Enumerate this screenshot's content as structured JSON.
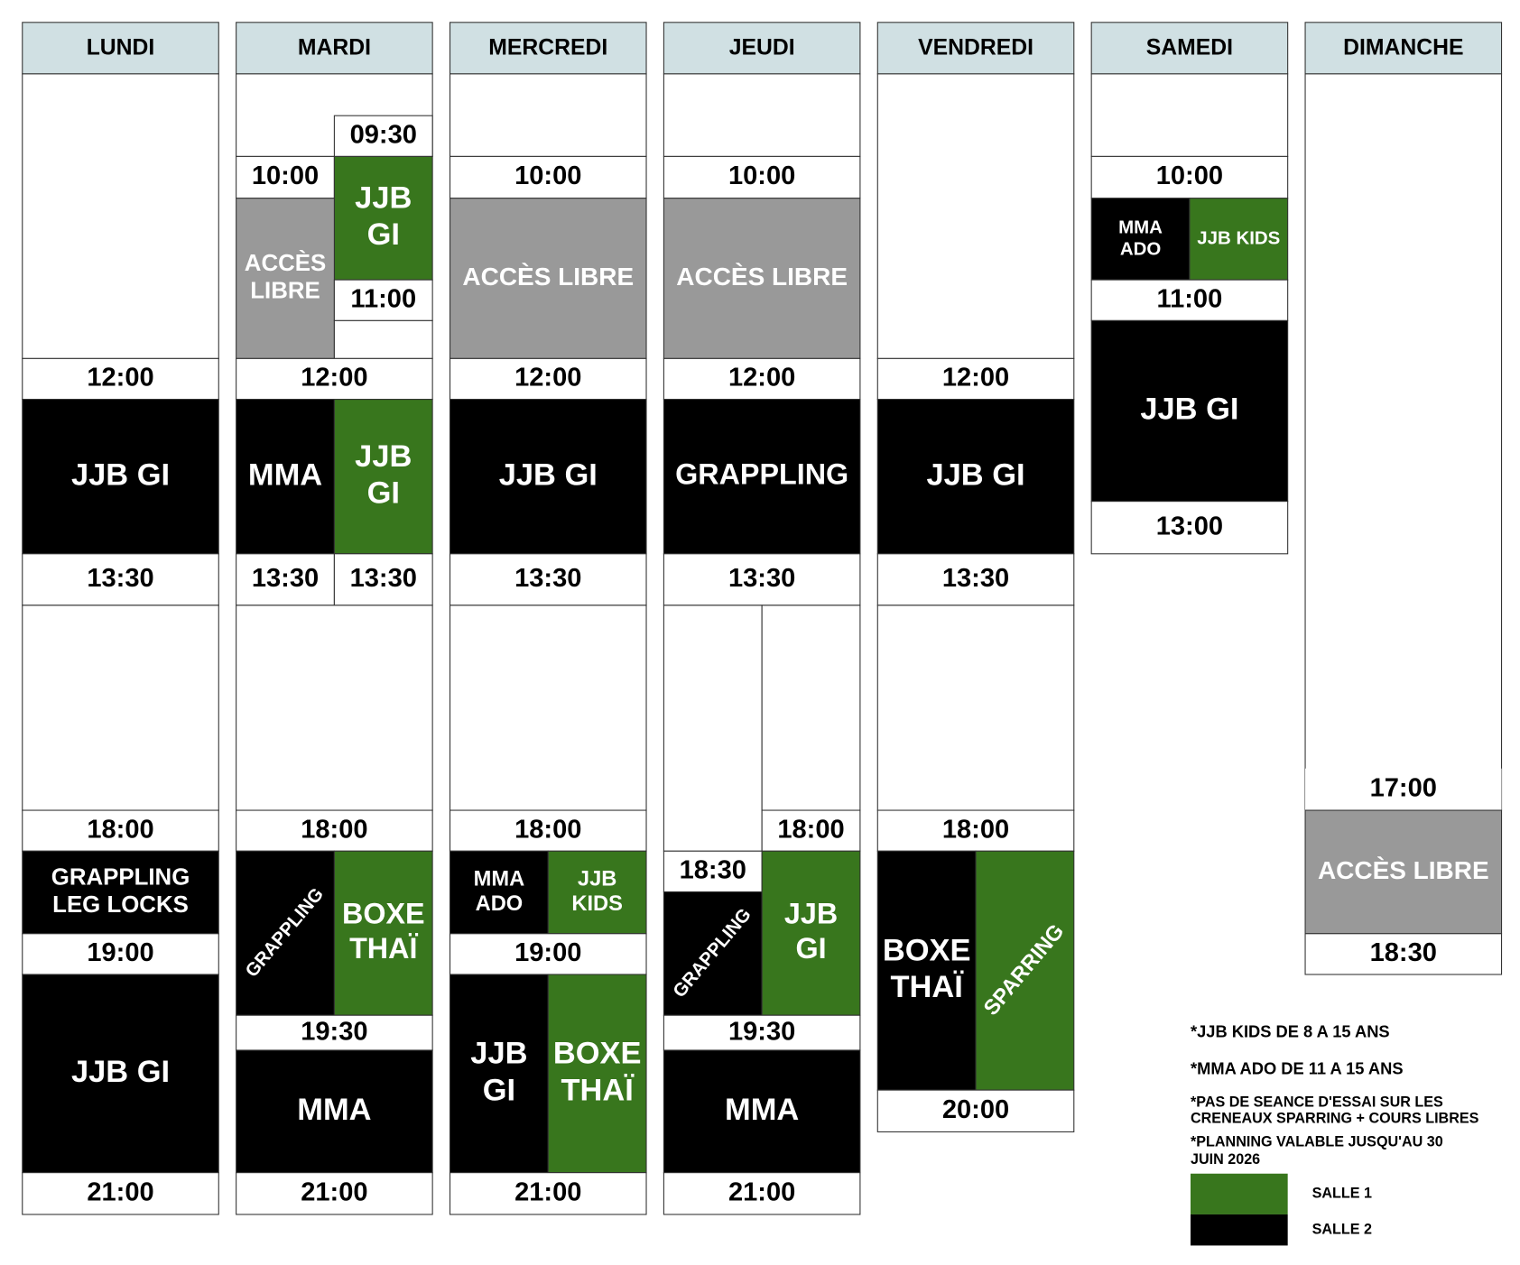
{
  "days": [
    {
      "name": "LUNDI",
      "blocks": [
        "12:00",
        "JJB GI",
        "13:30",
        "18:00",
        [
          "GRAPPLING",
          "LEG LOCKS"
        ],
        "19:00",
        "JJB GI",
        "21:00"
      ]
    },
    {
      "name": "MARDI",
      "blocks": [
        "09:30",
        "10:00",
        [
          "JJB",
          "GI"
        ],
        [
          "ACCÈS",
          "LIBRE"
        ],
        "11:00",
        "12:00",
        "MMA",
        [
          "JJB",
          "GI"
        ],
        "13:30",
        "13:30",
        "18:00",
        "GRAPPLING",
        [
          "BOXE",
          "THAÏ"
        ],
        "19:30",
        "MMA",
        "21:00"
      ]
    },
    {
      "name": "MERCREDI",
      "blocks": [
        "10:00",
        "ACCÈS LIBRE",
        "12:00",
        "JJB GI",
        "13:30",
        "18:00",
        [
          "MMA",
          "ADO"
        ],
        [
          "JJB",
          "KIDS"
        ],
        "19:00",
        [
          "JJB",
          "GI"
        ],
        [
          "BOXE",
          "THAÏ"
        ],
        "21:00"
      ]
    },
    {
      "name": "JEUDI",
      "blocks": [
        "10:00",
        "ACCÈS LIBRE",
        "12:00",
        "GRAPPLING",
        "13:30",
        "18:00",
        "18:30",
        "GRAPPLING",
        [
          "JJB",
          "GI"
        ],
        "19:30",
        "MMA",
        "21:00"
      ]
    },
    {
      "name": "VENDREDI",
      "blocks": [
        "12:00",
        "JJB GI",
        "13:30",
        "18:00",
        [
          "BOXE",
          "THAÏ"
        ],
        "SPARRING",
        "20:00"
      ]
    },
    {
      "name": "SAMEDI",
      "blocks": [
        "10:00",
        [
          "MMA",
          "ADO"
        ],
        "JJB KIDS",
        "11:00",
        "JJB GI",
        "13:00"
      ]
    },
    {
      "name": "DIMANCHE",
      "blocks": [
        "17:00",
        "ACCÈS LIBRE",
        "18:30"
      ]
    }
  ],
  "notes": [
    "*JJB KIDS DE 8 A 15 ANS",
    "*MMA ADO DE 11 A 15 ANS",
    "*PAS DE SEANCE D'ESSAI SUR LES",
    "CRENEAUX  SPARRING + COURS LIBRES",
    "*PLANNING VALABLE JUSQU'AU 30",
    "JUIN 2026"
  ],
  "legend": [
    "SALLE 1",
    "SALLE 2"
  ]
}
